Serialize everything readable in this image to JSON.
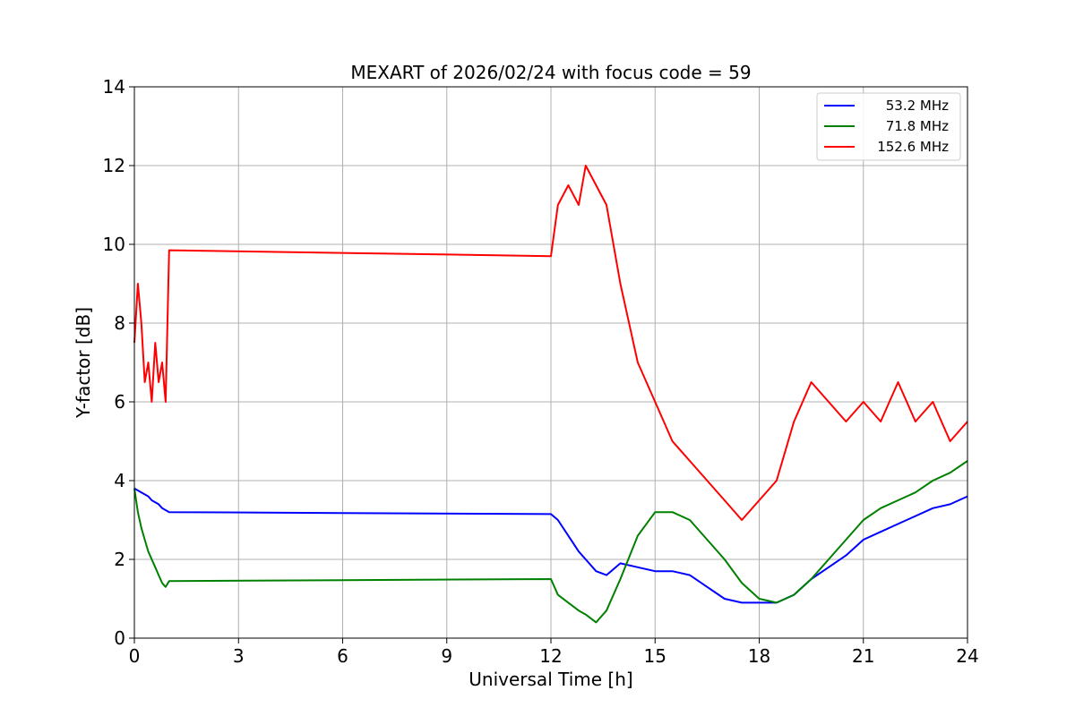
{
  "chart_data": {
    "type": "line",
    "title": "MEXART of 2026/02/24 with focus code = 59",
    "xlabel": "Universal Time [h]",
    "ylabel": "Y-factor [dB]",
    "xlim": [
      0,
      24
    ],
    "ylim": [
      0,
      14
    ],
    "xticks": [
      0,
      3,
      6,
      9,
      12,
      15,
      18,
      21,
      24
    ],
    "yticks": [
      0,
      2,
      4,
      6,
      8,
      10,
      12,
      14
    ],
    "grid": true,
    "legend_position": "top-right",
    "series": [
      {
        "name": "53.2 MHz",
        "color": "#0000ff",
        "x": [
          0,
          0.1,
          0.2,
          0.3,
          0.4,
          0.5,
          0.6,
          0.7,
          0.8,
          0.9,
          1.0,
          12.0,
          12.2,
          12.5,
          12.8,
          13.0,
          13.3,
          13.6,
          14.0,
          14.5,
          15.0,
          15.5,
          16.0,
          16.5,
          17.0,
          17.5,
          18.0,
          18.5,
          19.0,
          19.5,
          20.0,
          20.5,
          21.0,
          21.5,
          22.0,
          22.5,
          23.0,
          23.5,
          24.0
        ],
        "y": [
          3.8,
          3.75,
          3.7,
          3.65,
          3.6,
          3.5,
          3.45,
          3.4,
          3.3,
          3.25,
          3.2,
          3.15,
          3.0,
          2.6,
          2.2,
          2.0,
          1.7,
          1.6,
          1.9,
          1.8,
          1.7,
          1.7,
          1.6,
          1.3,
          1.0,
          0.9,
          0.9,
          0.9,
          1.1,
          1.5,
          1.8,
          2.1,
          2.5,
          2.7,
          2.9,
          3.1,
          3.3,
          3.4,
          3.6
        ]
      },
      {
        "name": "71.8 MHz",
        "color": "#008000",
        "x": [
          0,
          0.1,
          0.2,
          0.3,
          0.4,
          0.5,
          0.6,
          0.7,
          0.8,
          0.9,
          1.0,
          12.0,
          12.2,
          12.5,
          12.8,
          13.0,
          13.3,
          13.6,
          14.0,
          14.5,
          15.0,
          15.5,
          16.0,
          16.5,
          17.0,
          17.5,
          18.0,
          18.5,
          19.0,
          19.5,
          20.0,
          20.5,
          21.0,
          21.5,
          22.0,
          22.5,
          23.0,
          23.5,
          24.0
        ],
        "y": [
          3.8,
          3.2,
          2.8,
          2.5,
          2.2,
          2.0,
          1.8,
          1.6,
          1.4,
          1.3,
          1.45,
          1.5,
          1.1,
          0.9,
          0.7,
          0.6,
          0.4,
          0.7,
          1.5,
          2.6,
          3.2,
          3.2,
          3.0,
          2.5,
          2.0,
          1.4,
          1.0,
          0.9,
          1.1,
          1.5,
          2.0,
          2.5,
          3.0,
          3.3,
          3.5,
          3.7,
          4.0,
          4.2,
          4.5
        ]
      },
      {
        "name": "152.6 MHz",
        "color": "#ff0000",
        "x": [
          0,
          0.1,
          0.2,
          0.3,
          0.4,
          0.5,
          0.6,
          0.7,
          0.8,
          0.9,
          1.0,
          12.0,
          12.2,
          12.5,
          12.8,
          13.0,
          13.3,
          13.6,
          14.0,
          14.5,
          15.0,
          15.5,
          16.0,
          16.5,
          17.0,
          17.5,
          18.0,
          18.5,
          19.0,
          19.5,
          20.0,
          20.5,
          21.0,
          21.5,
          22.0,
          22.5,
          23.0,
          23.5,
          24.0
        ],
        "y": [
          7.5,
          9.0,
          8.0,
          6.5,
          7.0,
          6.0,
          7.5,
          6.5,
          7.0,
          6.0,
          9.85,
          9.7,
          11.0,
          11.5,
          11.0,
          12.0,
          11.5,
          11.0,
          9.0,
          7.0,
          6.0,
          5.0,
          4.5,
          4.0,
          3.5,
          3.0,
          3.5,
          4.0,
          5.5,
          6.5,
          6.0,
          5.5,
          6.0,
          5.5,
          6.5,
          5.5,
          6.0,
          5.0,
          5.5
        ]
      }
    ]
  }
}
